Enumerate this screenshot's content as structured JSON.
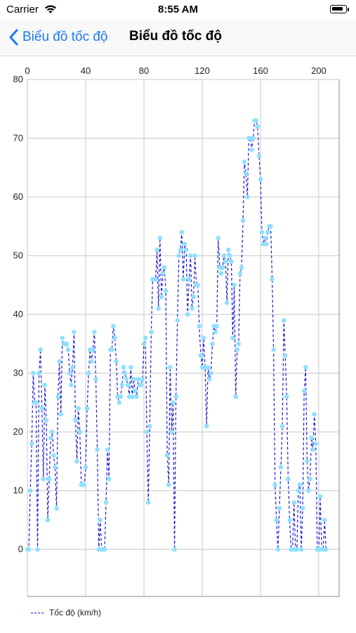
{
  "status_bar": {
    "carrier": "Carrier",
    "time": "8:55 AM"
  },
  "nav": {
    "back_label": "Biểu đồ tốc độ",
    "title": "Biểu đồ tốc độ"
  },
  "colors": {
    "accent": "#1a7bf4",
    "line": "#1a1ad6",
    "marker": "#8fe0ff",
    "grid": "#c8c8c8"
  },
  "chart_data": {
    "type": "line",
    "title": "",
    "xlabel": "",
    "ylabel": "",
    "xlim": [
      0,
      214
    ],
    "ylim": [
      -8,
      80
    ],
    "x_ticks": [
      0,
      40,
      80,
      120,
      160,
      200
    ],
    "y_ticks": [
      0,
      10,
      20,
      30,
      40,
      50,
      60,
      70,
      80
    ],
    "x_axis_position": "top",
    "grid": true,
    "legend_position": "bottom-left",
    "series": [
      {
        "name": "Tốc độ (km/h)",
        "style": "dashed-with-circle-markers",
        "values": [
          0,
          0,
          10,
          18,
          30,
          25,
          25,
          0,
          30,
          34,
          24,
          12,
          28,
          22,
          5,
          12,
          19,
          20,
          16,
          14,
          7,
          26,
          32,
          23,
          36,
          35,
          35,
          35,
          34,
          30,
          28,
          31,
          37,
          22,
          15,
          24,
          20,
          11,
          11,
          11,
          14,
          24,
          30,
          34,
          32,
          34,
          37,
          29,
          17,
          0,
          5,
          0,
          0,
          0,
          8,
          17,
          12,
          34,
          34,
          38,
          36,
          32,
          26,
          25,
          26,
          28,
          31,
          30,
          29,
          28,
          26,
          31,
          26,
          29,
          27,
          26,
          29,
          28,
          28,
          29,
          35,
          36,
          20,
          8,
          21,
          37,
          46,
          46,
          46,
          51,
          41,
          53,
          43,
          47,
          48,
          44,
          16,
          11,
          31,
          20,
          25,
          0,
          26,
          39,
          50,
          51,
          54,
          46,
          52,
          51,
          40,
          46,
          50,
          41,
          43,
          50,
          45,
          45,
          38,
          33,
          31,
          36,
          31,
          21,
          31,
          29,
          30,
          35,
          38,
          37,
          38,
          53,
          48,
          47,
          48,
          50,
          49,
          42,
          51,
          50,
          49,
          36,
          45,
          26,
          34,
          35,
          47,
          48,
          56,
          66,
          64,
          60,
          70,
          70,
          68,
          70,
          73,
          73,
          72,
          67,
          63,
          54,
          52,
          53,
          52,
          54,
          55,
          55,
          46,
          34,
          11,
          5,
          0,
          7,
          14,
          21,
          39,
          33,
          26,
          12,
          5,
          0,
          0,
          8,
          0,
          0,
          10,
          11,
          0,
          7,
          27,
          31,
          15,
          10,
          12,
          19,
          17,
          23,
          18,
          0,
          0,
          9,
          0,
          0,
          5,
          0
        ]
      }
    ]
  }
}
